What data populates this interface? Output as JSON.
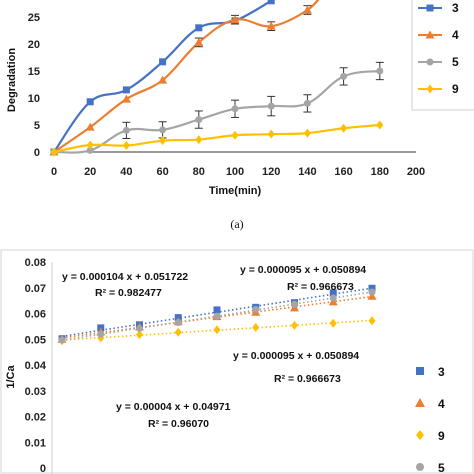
{
  "chart_data": [
    {
      "type": "line",
      "panel_label": "(a)",
      "xlabel": "Time(min)",
      "ylabel": "Degradation",
      "xlim": [
        0,
        200
      ],
      "ylim": [
        0,
        30
      ],
      "x_ticks": [
        "0",
        "20",
        "40",
        "60",
        "80",
        "100",
        "120",
        "140",
        "160",
        "180",
        "200"
      ],
      "y_ticks": [
        "0",
        "5",
        "10",
        "15",
        "20",
        "25"
      ],
      "legend_position": "right",
      "series": [
        {
          "name": "3",
          "color": "#4472C4",
          "marker": "square",
          "x": [
            0,
            20,
            40,
            60,
            80,
            100,
            120
          ],
          "y": [
            0,
            9.3,
            11.5,
            16.7,
            23,
            24.3,
            28
          ],
          "err": [
            0,
            0,
            0,
            0,
            0,
            0,
            0
          ]
        },
        {
          "name": "4",
          "color": "#ED7D31",
          "marker": "triangle",
          "x": [
            0,
            20,
            40,
            60,
            80,
            100,
            120,
            140,
            150
          ],
          "y": [
            0,
            4.6,
            9.8,
            13.3,
            20.3,
            24.5,
            23.3,
            26.3,
            30
          ],
          "err": [
            0,
            0,
            0,
            0,
            0.8,
            0.8,
            0.8,
            0.8,
            0
          ]
        },
        {
          "name": "5",
          "color": "#A5A5A5",
          "marker": "circle",
          "x": [
            0,
            20,
            40,
            60,
            80,
            100,
            120,
            140,
            160,
            180
          ],
          "y": [
            0,
            0.3,
            4,
            4.1,
            6,
            8,
            8.5,
            9,
            14,
            15
          ],
          "err": [
            0,
            0,
            1.5,
            1.5,
            1.6,
            1.6,
            1.8,
            1.6,
            1.6,
            1.6
          ]
        },
        {
          "name": "9",
          "color": "#FFC000",
          "marker": "diamond",
          "x": [
            0,
            20,
            40,
            60,
            80,
            100,
            120,
            140,
            160,
            180
          ],
          "y": [
            0,
            1.3,
            1.2,
            2.1,
            2.3,
            3.1,
            3.3,
            3.5,
            4.4,
            5
          ],
          "err": [
            0,
            0,
            0,
            0,
            0,
            0,
            0,
            0,
            0,
            0
          ]
        }
      ]
    },
    {
      "type": "scatter",
      "ylabel": "1/Ca",
      "ylim": [
        0,
        0.08
      ],
      "y_ticks": [
        "0",
        "0.01",
        "0.02",
        "0.03",
        "0.04",
        "0.05",
        "0.06",
        "0.07",
        "0.08"
      ],
      "trendline_style": "dotted",
      "legend_position": "right",
      "series": [
        {
          "name": "3",
          "color": "#4472C4",
          "marker": "square",
          "x": [
            0,
            1,
            2,
            3,
            4,
            5,
            6,
            7,
            8
          ],
          "y": [
            0.0502,
            0.0544,
            0.0556,
            0.0584,
            0.0614,
            0.0624,
            0.0642,
            0.068,
            0.0698
          ]
        },
        {
          "name": "4",
          "color": "#ED7D31",
          "marker": "triangle",
          "x": [
            0,
            1,
            2,
            3,
            4,
            5,
            6,
            7,
            8
          ],
          "y": [
            0.05,
            0.0528,
            0.0548,
            0.0568,
            0.0588,
            0.0605,
            0.0622,
            0.0645,
            0.0667
          ]
        },
        {
          "name": "9",
          "color": "#FFC000",
          "marker": "diamond",
          "x": [
            0,
            1,
            2,
            3,
            4,
            5,
            6,
            7,
            8
          ],
          "y": [
            0.0494,
            0.0505,
            0.0518,
            0.0527,
            0.0537,
            0.0546,
            0.0554,
            0.0562,
            0.0572
          ]
        },
        {
          "name": "5",
          "color": "#A5A5A5",
          "marker": "circle",
          "x": [
            0,
            1,
            2,
            3,
            4,
            5,
            6,
            7,
            8
          ],
          "y": [
            0.0497,
            0.052,
            0.0542,
            0.0565,
            0.059,
            0.0616,
            0.0636,
            0.066,
            0.0683
          ]
        }
      ],
      "annotations": [
        {
          "equation": "y = 0.000104 x + 0.051722",
          "r2": "R² = 0.982477"
        },
        {
          "equation": "y = 0.000095 x + 0.050894",
          "r2": "R² = 0.966673"
        },
        {
          "equation": "y = 0.000095 x + 0.050894",
          "r2": "R² = 0.966673"
        },
        {
          "equation": "y = 0.00004 x + 0.04971",
          "r2": "R² = 0.96070"
        }
      ]
    }
  ]
}
